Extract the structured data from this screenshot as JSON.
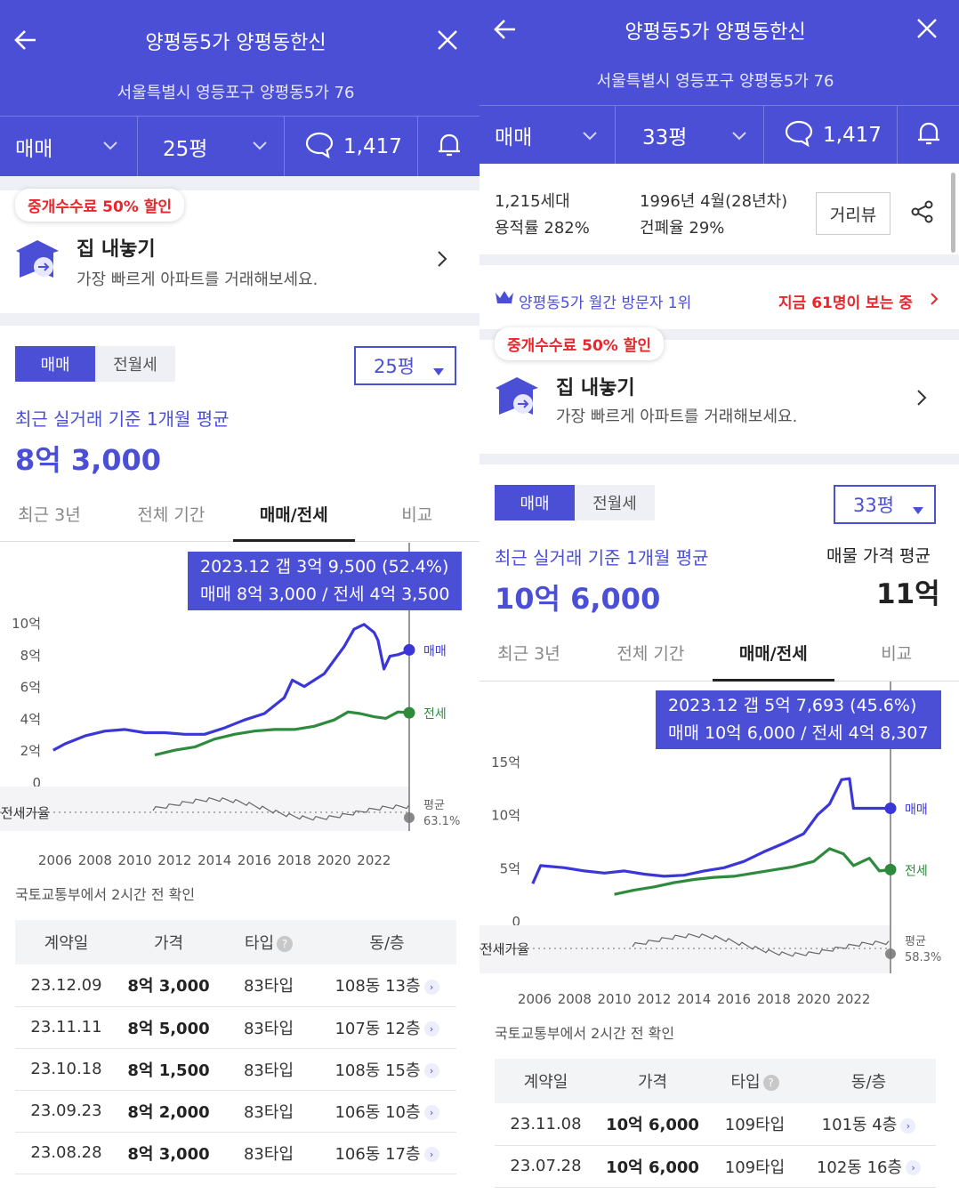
{
  "left": {
    "title": "양평동5가 양평동한신",
    "address": "서울특별시 영등포구 양평동5가 76",
    "filter": {
      "deal": "매매",
      "size": "25평",
      "comments": "1,417"
    },
    "promo": {
      "badge": "중개수수료 50% 할인",
      "title": "집 내놓기",
      "desc": "가장 빠르게 아파트를 거래해보세요."
    },
    "segment": {
      "sale": "매매",
      "rent": "전월세"
    },
    "size_select": "25평",
    "avg_note": "최근 실거래 기준 1개월 평균",
    "avg_price": "8억 3,000",
    "tabs": [
      "최근 3년",
      "전체 기간",
      "매매/전세",
      "비교"
    ],
    "tooltip": {
      "line1": "2023.12  갭 3억 9,500 (52.4%)",
      "line2": "매매 8억 3,000 / 전세 4억 3,500"
    },
    "source_note": "국토교통부에서 2시간 전 확인",
    "table": {
      "headers": [
        "계약일",
        "가격",
        "타입",
        "동/층"
      ],
      "rows": [
        {
          "date": "23.12.09",
          "price": "8억 3,000",
          "type": "83타입",
          "floor": "108동 13층"
        },
        {
          "date": "23.11.11",
          "price": "8억 5,000",
          "type": "83타입",
          "floor": "107동 12층"
        },
        {
          "date": "23.10.18",
          "price": "8억 1,500",
          "type": "83타입",
          "floor": "108동 15층"
        },
        {
          "date": "23.09.23",
          "price": "8억 2,000",
          "type": "83타입",
          "floor": "106동 10층"
        },
        {
          "date": "23.08.28",
          "price": "8억 3,000",
          "type": "83타입",
          "floor": "106동 17층"
        }
      ]
    }
  },
  "right": {
    "title": "양평동5가 양평동한신",
    "address": "서울특별시 영등포구 양평동5가 76",
    "filter": {
      "deal": "매매",
      "size": "33평",
      "comments": "1,417"
    },
    "info": {
      "households": "1,215세대",
      "far": "용적률 282%",
      "built": "1996년 4월(28년차)",
      "bcr": "건폐율 29%",
      "street_view": "거리뷰"
    },
    "rank": {
      "text": "양평동5가 월간 방문자 1위",
      "viewers": "지금 61명이 보는 중"
    },
    "promo": {
      "badge": "중개수수료 50% 할인",
      "title": "집 내놓기",
      "desc": "가장 빠르게 아파트를 거래해보세요."
    },
    "segment": {
      "sale": "매매",
      "rent": "전월세"
    },
    "size_select": "33평",
    "avg_note": "최근 실거래 기준 1개월 평균",
    "avg_price": "10억 6,000",
    "listing_label": "매물 가격 평균",
    "listing_price": "11억",
    "tabs": [
      "최근 3년",
      "전체 기간",
      "매매/전세",
      "비교"
    ],
    "tooltip": {
      "line1": "2023.12  갭 5억 7,693 (45.6%)",
      "line2": "매매 10억 6,000 / 전세 4억 8,307"
    },
    "source_note": "국토교통부에서 2시간 전 확인",
    "table": {
      "headers": [
        "계약일",
        "가격",
        "타입",
        "동/층"
      ],
      "rows": [
        {
          "date": "23.11.08",
          "price": "10억 6,000",
          "type": "109타입",
          "floor": "101동 4층"
        },
        {
          "date": "23.07.28",
          "price": "10억 6,000",
          "type": "109타입",
          "floor": "102동 16층"
        }
      ]
    }
  },
  "colors": {
    "brand": "#4b4fd6",
    "sale_line": "#3b36d8",
    "jeonse_line": "#2e8b3e",
    "badge_red": "#e8262b"
  },
  "chart_data": [
    {
      "type": "line",
      "title": "",
      "x_ticks": [
        "2006",
        "2008",
        "2010",
        "2012",
        "2014",
        "2016",
        "2018",
        "2020",
        "2022"
      ],
      "y_ticks": [
        "10억",
        "8억",
        "6억",
        "4억",
        "2억",
        "0"
      ],
      "ylim": [
        0,
        10
      ],
      "ratio_label": "전세가율",
      "avg_label": "평균",
      "avg_ratio": "63.1%",
      "series": [
        {
          "name": "매매",
          "color": "#3b36d8",
          "points": [
            [
              2005.9,
              2.0
            ],
            [
              2006.5,
              2.4
            ],
            [
              2007.5,
              2.9
            ],
            [
              2008.5,
              3.2
            ],
            [
              2009.5,
              3.3
            ],
            [
              2010.5,
              3.1
            ],
            [
              2011.5,
              3.1
            ],
            [
              2012.5,
              3.0
            ],
            [
              2013.5,
              3.0
            ],
            [
              2014.5,
              3.4
            ],
            [
              2015.5,
              3.9
            ],
            [
              2016.5,
              4.3
            ],
            [
              2017.5,
              5.3
            ],
            [
              2017.9,
              6.4
            ],
            [
              2018.5,
              6.0
            ],
            [
              2019.5,
              6.8
            ],
            [
              2020.5,
              8.5
            ],
            [
              2021.0,
              9.6
            ],
            [
              2021.5,
              9.9
            ],
            [
              2022.0,
              9.4
            ],
            [
              2022.2,
              8.9
            ],
            [
              2022.5,
              7.1
            ],
            [
              2022.8,
              7.9
            ],
            [
              2023.2,
              8.0
            ],
            [
              2023.9,
              8.3
            ]
          ]
        },
        {
          "name": "전세",
          "color": "#2e8b3e",
          "points": [
            [
              2011.0,
              1.7
            ],
            [
              2012.0,
              2.0
            ],
            [
              2013.0,
              2.2
            ],
            [
              2014.0,
              2.7
            ],
            [
              2015.0,
              3.0
            ],
            [
              2016.0,
              3.2
            ],
            [
              2017.0,
              3.3
            ],
            [
              2018.0,
              3.3
            ],
            [
              2019.0,
              3.5
            ],
            [
              2020.0,
              3.9
            ],
            [
              2020.7,
              4.4
            ],
            [
              2021.3,
              4.3
            ],
            [
              2022.0,
              4.1
            ],
            [
              2022.6,
              4.0
            ],
            [
              2023.2,
              4.4
            ],
            [
              2023.9,
              4.35
            ]
          ]
        }
      ]
    },
    {
      "type": "line",
      "title": "",
      "x_ticks": [
        "2006",
        "2008",
        "2010",
        "2012",
        "2014",
        "2016",
        "2018",
        "2020",
        "2022"
      ],
      "y_ticks": [
        "15억",
        "10억",
        "5억",
        "0"
      ],
      "ylim": [
        0,
        15
      ],
      "ratio_label": "전세가율",
      "avg_label": "평균",
      "avg_ratio": "58.3%",
      "series": [
        {
          "name": "매매",
          "color": "#3b36d8",
          "points": [
            [
              2005.9,
              3.5
            ],
            [
              2006.3,
              5.2
            ],
            [
              2007.5,
              5.0
            ],
            [
              2008.5,
              4.7
            ],
            [
              2009.5,
              4.5
            ],
            [
              2010.5,
              4.7
            ],
            [
              2011.5,
              4.4
            ],
            [
              2012.5,
              4.2
            ],
            [
              2013.5,
              4.3
            ],
            [
              2014.5,
              4.7
            ],
            [
              2015.5,
              5.0
            ],
            [
              2016.5,
              5.6
            ],
            [
              2017.5,
              6.5
            ],
            [
              2018.5,
              7.3
            ],
            [
              2019.5,
              8.2
            ],
            [
              2020.2,
              10.0
            ],
            [
              2020.8,
              11.0
            ],
            [
              2021.4,
              13.3
            ],
            [
              2021.8,
              13.4
            ],
            [
              2022.0,
              10.6
            ],
            [
              2023.9,
              10.6
            ]
          ]
        },
        {
          "name": "전세",
          "color": "#2e8b3e",
          "points": [
            [
              2010.0,
              2.5
            ],
            [
              2011.0,
              2.9
            ],
            [
              2012.0,
              3.2
            ],
            [
              2013.0,
              3.6
            ],
            [
              2014.0,
              3.9
            ],
            [
              2015.0,
              4.1
            ],
            [
              2016.0,
              4.2
            ],
            [
              2017.0,
              4.5
            ],
            [
              2018.0,
              4.8
            ],
            [
              2019.0,
              5.1
            ],
            [
              2020.0,
              5.6
            ],
            [
              2020.8,
              6.8
            ],
            [
              2021.5,
              6.3
            ],
            [
              2022.0,
              5.2
            ],
            [
              2022.8,
              5.9
            ],
            [
              2023.3,
              4.7
            ],
            [
              2023.9,
              4.83
            ]
          ]
        }
      ]
    }
  ]
}
